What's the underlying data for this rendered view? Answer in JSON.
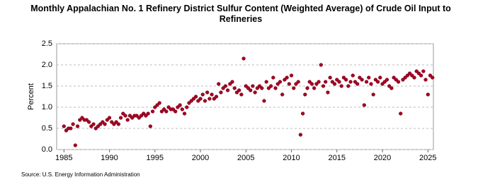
{
  "chart_data": {
    "type": "scatter",
    "title": "Monthly Appalachian No. 1 Refinery District Sulfur Content (Weighted Average) of Crude Oil Input to Refineries",
    "y_label": "Percent",
    "source": "Source: U.S. Energy Information Administration",
    "color": "#a50021",
    "grid": true,
    "xlim": [
      1984.2,
      2025.6
    ],
    "xticks": [
      1985,
      1990,
      1995,
      2000,
      2005,
      2010,
      2015,
      2020,
      2025
    ],
    "ylim": [
      0,
      2.5
    ],
    "yticks": [
      {
        "value": 0,
        "label": "0.0"
      },
      0.5,
      {
        "value": 1,
        "label": "1.0"
      },
      1.5,
      {
        "value": 2,
        "label": "2.0"
      },
      2.5
    ],
    "x": [
      1985,
      1985.25,
      1985.5,
      1985.75,
      1986,
      1986.25,
      1986.5,
      1986.75,
      1987,
      1987.25,
      1987.5,
      1987.75,
      1988,
      1988.25,
      1988.5,
      1988.75,
      1989,
      1989.25,
      1989.5,
      1989.75,
      1990,
      1990.25,
      1990.5,
      1990.75,
      1991,
      1991.25,
      1991.5,
      1991.75,
      1992,
      1992.25,
      1992.5,
      1992.75,
      1993,
      1993.25,
      1993.5,
      1993.75,
      1994,
      1994.25,
      1994.5,
      1994.75,
      1995,
      1995.25,
      1995.5,
      1995.75,
      1996,
      1996.25,
      1996.5,
      1996.75,
      1997,
      1997.25,
      1997.5,
      1997.75,
      1998,
      1998.25,
      1998.5,
      1998.75,
      1999,
      1999.25,
      1999.5,
      1999.75,
      2000,
      2000.25,
      2000.5,
      2000.75,
      2001,
      2001.25,
      2001.5,
      2001.75,
      2002,
      2002.25,
      2002.5,
      2002.75,
      2003,
      2003.25,
      2003.5,
      2003.75,
      2004,
      2004.25,
      2004.5,
      2004.75,
      2005,
      2005.25,
      2005.5,
      2005.75,
      2006,
      2006.25,
      2006.5,
      2006.75,
      2007,
      2007.25,
      2007.5,
      2007.75,
      2008,
      2008.25,
      2008.5,
      2008.75,
      2009,
      2009.25,
      2009.5,
      2009.75,
      2010,
      2010.25,
      2010.5,
      2010.75,
      2011,
      2011.25,
      2011.5,
      2011.75,
      2012,
      2012.25,
      2012.5,
      2012.75,
      2013,
      2013.25,
      2013.5,
      2013.75,
      2014,
      2014.25,
      2014.5,
      2014.75,
      2015,
      2015.25,
      2015.5,
      2015.75,
      2016,
      2016.25,
      2016.5,
      2016.75,
      2017,
      2017.25,
      2017.5,
      2017.75,
      2018,
      2018.25,
      2018.5,
      2018.75,
      2019,
      2019.25,
      2019.5,
      2019.75,
      2020,
      2020.25,
      2020.5,
      2020.75,
      2021,
      2021.25,
      2021.5,
      2021.75,
      2022,
      2022.25,
      2022.5,
      2022.75,
      2023,
      2023.25,
      2023.5,
      2023.75,
      2024,
      2024.25,
      2024.5,
      2024.75,
      2025,
      2025.25,
      2025.5
    ],
    "values": [
      0.55,
      0.45,
      0.5,
      0.5,
      0.6,
      0.1,
      0.55,
      0.7,
      0.75,
      0.7,
      0.7,
      0.65,
      0.55,
      0.6,
      0.5,
      0.55,
      0.6,
      0.65,
      0.6,
      0.7,
      0.75,
      0.65,
      0.6,
      0.65,
      0.6,
      0.75,
      0.85,
      0.8,
      0.7,
      0.8,
      0.75,
      0.8,
      0.8,
      0.75,
      0.8,
      0.85,
      0.8,
      0.85,
      0.55,
      0.9,
      1.0,
      1.05,
      1.1,
      0.9,
      0.95,
      0.9,
      1.0,
      0.95,
      0.95,
      0.9,
      1.0,
      1.05,
      0.95,
      0.85,
      1.0,
      1.1,
      1.15,
      1.2,
      1.25,
      1.15,
      1.2,
      1.3,
      1.15,
      1.35,
      1.2,
      1.3,
      1.2,
      1.25,
      1.55,
      1.35,
      1.45,
      1.5,
      1.4,
      1.55,
      1.6,
      1.45,
      1.35,
      1.4,
      1.3,
      2.15,
      1.5,
      1.45,
      1.4,
      1.5,
      1.35,
      1.45,
      1.5,
      1.45,
      1.15,
      1.6,
      1.45,
      1.5,
      1.7,
      1.45,
      1.55,
      1.6,
      1.3,
      1.65,
      1.7,
      1.55,
      1.75,
      1.45,
      1.55,
      1.6,
      0.35,
      0.85,
      1.3,
      1.45,
      1.6,
      1.55,
      1.45,
      1.55,
      1.6,
      2.0,
      1.5,
      1.6,
      1.35,
      1.7,
      1.6,
      1.55,
      1.65,
      1.6,
      1.5,
      1.7,
      1.65,
      1.5,
      1.6,
      1.75,
      1.6,
      1.55,
      1.7,
      1.65,
      1.05,
      1.6,
      1.7,
      1.55,
      1.3,
      1.65,
      1.6,
      1.7,
      1.55,
      1.6,
      1.65,
      1.5,
      1.45,
      1.7,
      1.65,
      1.6,
      0.85,
      1.65,
      1.7,
      1.75,
      1.8,
      1.75,
      1.7,
      1.85,
      1.8,
      1.75,
      1.85,
      1.65,
      1.3,
      1.75,
      1.7
    ]
  }
}
